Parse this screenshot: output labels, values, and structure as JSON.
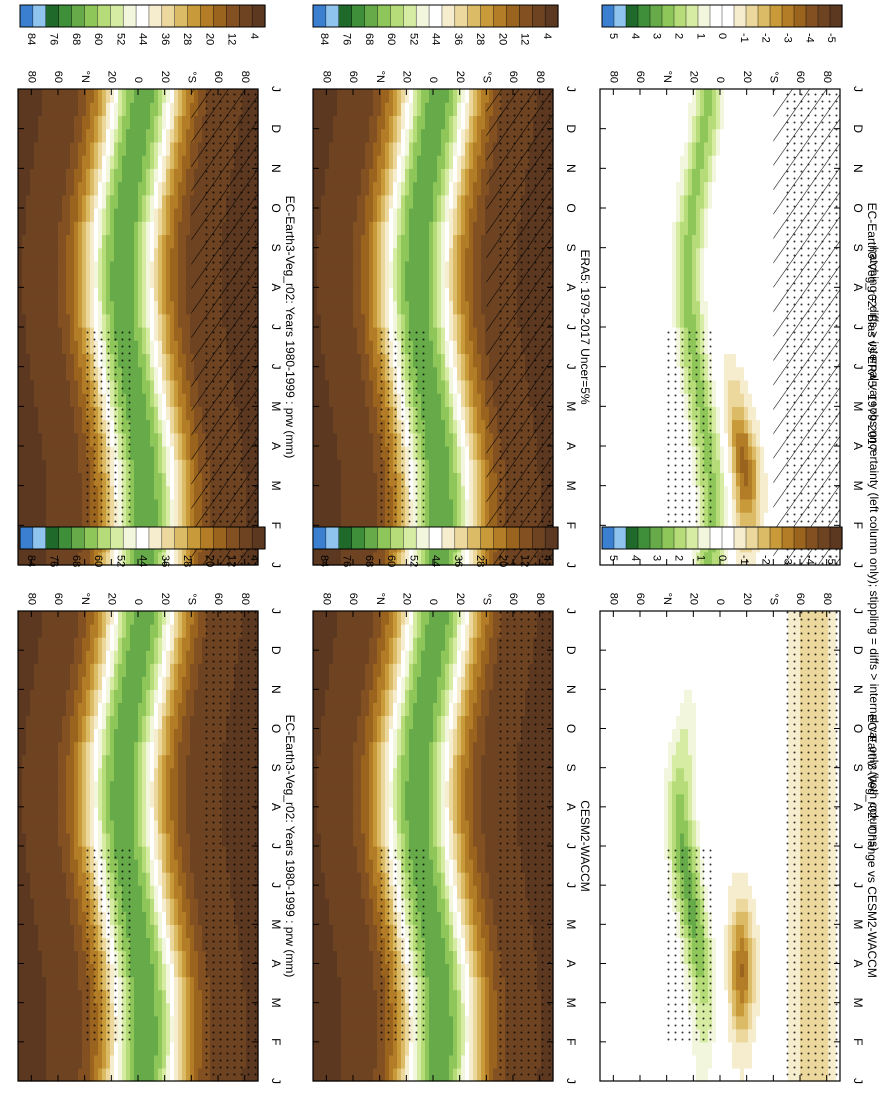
{
  "footer": "hatching = diffs > internal var+obs uncertainty (left column only); stippling = diffs > internal var only (both columns)",
  "colors": {
    "abs_scale": [
      "#3a7fd0",
      "#8fc4ef",
      "#1f6a2b",
      "#3e8e3a",
      "#66aa4a",
      "#8ec65a",
      "#b6dc7a",
      "#d6eca3",
      "#f1f6dc",
      "#ffffff",
      "#f6edcf",
      "#ecd79c",
      "#dcbb66",
      "#c99a3a",
      "#b37c26",
      "#9a641e",
      "#825021",
      "#6e4322",
      "#5c3820"
    ],
    "diff_scale": [
      "#3a7fd0",
      "#8fc4ef",
      "#1f6a2b",
      "#3e8e3a",
      "#66aa4a",
      "#8ec65a",
      "#b6dc7a",
      "#d6eca3",
      "#f1f6dc",
      "#ffffff",
      "#ffffff",
      "#f6edcf",
      "#ecd79c",
      "#dcbb66",
      "#c99a3a",
      "#b37c26",
      "#9a641e",
      "#825021",
      "#6e4322",
      "#5c3820"
    ]
  },
  "chart_data": [
    {
      "type": "heatmap",
      "title": "EC-Earth3-Veg_r02: Years 1980-1999 : prw (mm)",
      "x_ticks": [
        "J",
        "F",
        "M",
        "A",
        "M",
        "J",
        "J",
        "A",
        "S",
        "O",
        "N",
        "D",
        "J"
      ],
      "y_ticks": [
        "80",
        "60",
        "°N",
        "20",
        "0",
        "20",
        "°S",
        "60",
        "80"
      ],
      "colorbar": [
        "84",
        "76",
        "68",
        "60",
        "52",
        "44",
        "36",
        "28",
        "20",
        "12",
        "4"
      ],
      "overlay": "hatching + stippling",
      "ylim": [
        -90,
        90
      ]
    },
    {
      "type": "heatmap",
      "title": "ERA5: 1979-2017 Uncer=5%",
      "x_ticks": [
        "J",
        "F",
        "M",
        "A",
        "M",
        "J",
        "J",
        "A",
        "S",
        "O",
        "N",
        "D",
        "J"
      ],
      "y_ticks": [
        "80",
        "60",
        "°N",
        "20",
        "0",
        "20",
        "°S",
        "60",
        "80"
      ],
      "colorbar": [
        "84",
        "76",
        "68",
        "60",
        "52",
        "44",
        "36",
        "28",
        "20",
        "12",
        "4"
      ],
      "overlay": "hatching + stippling",
      "ylim": [
        -90,
        90
      ]
    },
    {
      "type": "heatmap",
      "title": "EC-Earth3-Veg_r02: Bias vs ERA5: 1979-2017",
      "x_ticks": [
        "J",
        "F",
        "M",
        "A",
        "M",
        "J",
        "J",
        "A",
        "S",
        "O",
        "N",
        "D",
        "J"
      ],
      "y_ticks": [
        "80",
        "60",
        "°N",
        "20",
        "0",
        "20",
        "°S",
        "60",
        "80"
      ],
      "colorbar": [
        "5",
        "4",
        "3",
        "2",
        "1",
        "0",
        "-1",
        "-2",
        "-3",
        "-4",
        "-5"
      ],
      "overlay": "hatching + stippling",
      "ylim": [
        -90,
        90
      ]
    },
    {
      "type": "heatmap",
      "title": "EC-Earth3-Veg_r02: Years 1980-1999 : prw (mm)",
      "x_ticks": [
        "J",
        "F",
        "M",
        "A",
        "M",
        "J",
        "J",
        "A",
        "S",
        "O",
        "N",
        "D",
        "J"
      ],
      "y_ticks": [
        "80",
        "60",
        "°N",
        "20",
        "0",
        "20",
        "°S",
        "60",
        "80"
      ],
      "colorbar": [
        "84",
        "76",
        "68",
        "60",
        "52",
        "44",
        "36",
        "28",
        "20",
        "12",
        "4"
      ],
      "overlay": "stippling",
      "ylim": [
        -90,
        90
      ]
    },
    {
      "type": "heatmap",
      "title": "CESM2-WACCM",
      "x_ticks": [
        "J",
        "F",
        "M",
        "A",
        "M",
        "J",
        "J",
        "A",
        "S",
        "O",
        "N",
        "D",
        "J"
      ],
      "y_ticks": [
        "80",
        "60",
        "°N",
        "20",
        "0",
        "20",
        "°S",
        "60",
        "80"
      ],
      "colorbar": [
        "84",
        "76",
        "68",
        "60",
        "52",
        "44",
        "36",
        "28",
        "20",
        "12",
        "4"
      ],
      "overlay": "stippling",
      "ylim": [
        -90,
        90
      ]
    },
    {
      "type": "heatmap",
      "title": "EC-Earth3-Veg_r02: Change vs CESM2-WACCM",
      "x_ticks": [
        "J",
        "F",
        "M",
        "A",
        "M",
        "J",
        "J",
        "A",
        "S",
        "O",
        "N",
        "D",
        "J"
      ],
      "y_ticks": [
        "80",
        "60",
        "°N",
        "20",
        "0",
        "20",
        "°S",
        "60",
        "80"
      ],
      "colorbar": [
        "5",
        "4",
        "3",
        "2",
        "1",
        "0",
        "-1",
        "-2",
        "-3",
        "-4",
        "-5"
      ],
      "overlay": "stippling",
      "ylim": [
        -90,
        90
      ]
    }
  ]
}
